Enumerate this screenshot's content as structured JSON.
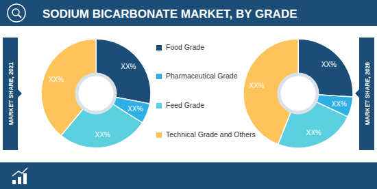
{
  "title": "SODIUM BICARBONATE MARKET, BY GRADE",
  "chart_data": [
    {
      "type": "pie",
      "title": "MARKET SHARE, 2021",
      "categories": [
        "Food Grade",
        "Pharmaceutical Grade",
        "Feed Grade",
        "Technical Grade and Others"
      ],
      "values": [
        28,
        6,
        27,
        39
      ],
      "value_labels": [
        "XX%",
        "XX%",
        "XX%",
        "XX%"
      ],
      "colors": [
        "#1b4d76",
        "#2cb0e6",
        "#5ccfdf",
        "#fdc45c"
      ],
      "data_labels": true
    },
    {
      "type": "pie",
      "title": "MARKET SHARE, 2028",
      "categories": [
        "Food Grade",
        "Pharmaceutical Grade",
        "Feed Grade",
        "Technical Grade and Others"
      ],
      "values": [
        26,
        6,
        24,
        44
      ],
      "value_labels": [
        "XX%",
        "XX%",
        "XX%",
        "XX%"
      ],
      "colors": [
        "#1b4d76",
        "#2cb0e6",
        "#5ccfdf",
        "#fdc45c"
      ],
      "data_labels": true
    }
  ]
}
